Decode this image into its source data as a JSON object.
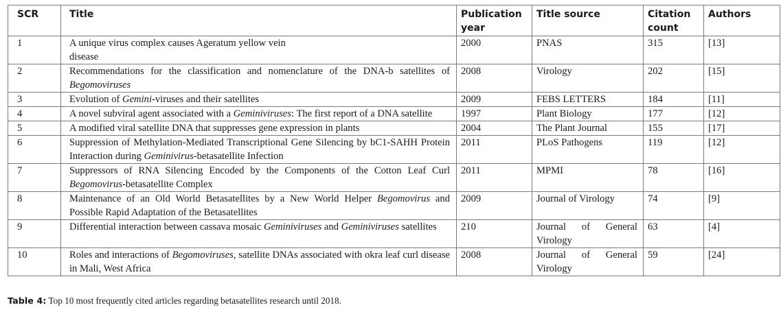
{
  "headers": {
    "scr": "SCR",
    "title": "Title",
    "year": "Publication year",
    "source": "Title source",
    "citations": "Citation count",
    "authors": "Authors"
  },
  "rows": [
    {
      "scr": "1",
      "title_parts": [
        "A unique virus complex causes Ageratum yellow vein disease"
      ],
      "year": "2000",
      "source": "PNAS",
      "citations": "315",
      "authors": "[13]"
    },
    {
      "scr": "2",
      "title_parts": [
        "Recommendations for the classification and nomenclature of the DNA-b satellites of ",
        "Begomoviruses"
      ],
      "year": "2008",
      "source": "Virology",
      "citations": "202",
      "authors": "[15]"
    },
    {
      "scr": "3",
      "title_parts": [
        "Evolution of ",
        "Gemini",
        "-viruses and their satellites"
      ],
      "year": "2009",
      "source": "FEBS LETTERS",
      "citations": "184",
      "authors": "[11]"
    },
    {
      "scr": "4",
      "title_parts": [
        "A novel subviral agent associated with a ",
        "Geminiviruses",
        ": The first report of a DNA satellite"
      ],
      "year": "1997",
      "source": "Plant Biology",
      "citations": "177",
      "authors": "[12]"
    },
    {
      "scr": "5",
      "title_parts": [
        "A modified viral satellite DNA that suppresses gene expression in plants"
      ],
      "year": "2004",
      "source": "The Plant Journal",
      "citations": "155",
      "authors": "[17]"
    },
    {
      "scr": "6",
      "title_parts": [
        "Suppression of Methylation-Mediated Transcriptional Gene Silencing by bC1-SAHH Protein Interaction during ",
        "Geminivirus",
        "-betasatellite Infection"
      ],
      "year": "2011",
      "source": "PLoS Pathogens",
      "citations": "119",
      "authors": "[12]"
    },
    {
      "scr": "7",
      "title_parts": [
        "Suppressors of RNA Silencing Encoded by the Components of the Cotton Leaf Curl ",
        "Begomovirus",
        "-betasatellite Complex"
      ],
      "year": "2011",
      "source": "MPMI",
      "citations": "78",
      "authors": "[16]"
    },
    {
      "scr": "8",
      "title_parts": [
        "Maintenance of an Old World Betasatellites by a New World Helper ",
        "Begomovirus",
        " and Possible Rapid Adaptation of the Betasatellites"
      ],
      "year": "2009",
      "source": "Journal of Virology",
      "citations": "74",
      "authors": "[9]"
    },
    {
      "scr": "9",
      "title_parts": [
        "Differential interaction between cassava mosaic ",
        "Geminiviruses",
        " and ",
        "Geminiviruses",
        " satellites"
      ],
      "year": "210",
      "source": "Journal of General Virology",
      "citations": "63",
      "authors": "[4]"
    },
    {
      "scr": "10",
      "title_parts": [
        "Roles and interactions of ",
        "Begomoviruses",
        ", satellite DNAs associated with okra leaf curl disease in Mali, West Africa"
      ],
      "year": "2008",
      "source": "Journal of General Virology",
      "citations": "59",
      "authors": "[24]"
    }
  ],
  "caption": {
    "label": "Table 4:",
    "text": " Top 10 most frequently cited articles regarding betasatellites research until 2018."
  }
}
